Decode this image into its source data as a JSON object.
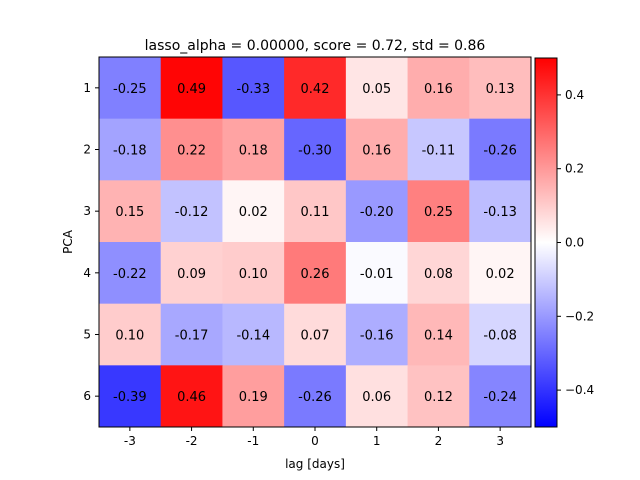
{
  "chart_data": {
    "type": "heatmap",
    "title": "lasso_alpha = 0.00000, score = 0.72, std = 0.86",
    "xlabel": "lag [days]",
    "ylabel": "PCA",
    "x_categories": [
      "-3",
      "-2",
      "-1",
      "0",
      "1",
      "2",
      "3"
    ],
    "y_categories": [
      "1",
      "2",
      "3",
      "4",
      "5",
      "6"
    ],
    "values": [
      [
        -0.25,
        0.49,
        -0.33,
        0.42,
        0.05,
        0.16,
        0.13
      ],
      [
        -0.18,
        0.22,
        0.18,
        -0.3,
        0.16,
        -0.11,
        -0.26
      ],
      [
        0.15,
        -0.12,
        0.02,
        0.11,
        -0.2,
        0.25,
        -0.13
      ],
      [
        -0.22,
        0.09,
        0.1,
        0.26,
        -0.01,
        0.08,
        0.02
      ],
      [
        0.1,
        -0.17,
        -0.14,
        0.07,
        -0.16,
        0.14,
        -0.08
      ],
      [
        -0.39,
        0.46,
        0.19,
        -0.26,
        0.06,
        0.12,
        -0.24
      ]
    ],
    "colormap": "bwr",
    "color_min": "#0000ff",
    "color_mid": "#ffffff",
    "color_max": "#ff0000",
    "vmin": -0.5,
    "vmax": 0.5,
    "colorbar_ticks": [
      0.4,
      0.2,
      0.0,
      -0.2,
      -0.4
    ],
    "colorbar_tick_labels": [
      "0.4",
      "0.2",
      "0.0",
      "−0.2",
      "−0.4"
    ]
  }
}
